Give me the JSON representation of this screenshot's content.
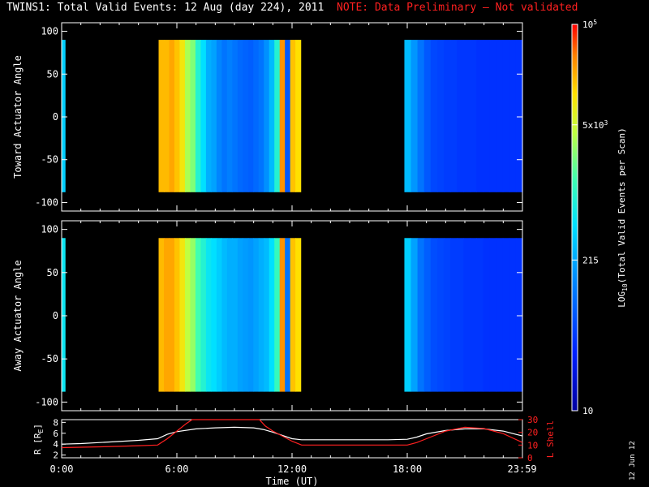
{
  "header": {
    "title": "TWINS1: Total Valid Events: 12 Aug (day 224), 2011",
    "note": "NOTE: Data Preliminary — Not validated"
  },
  "stamp": "12 Jun 12",
  "colors": {
    "background": "#000000",
    "axes": "#ffffff",
    "note": "#ff2020",
    "lshell": "#ff2020",
    "radius": "#ffffff"
  },
  "chart_data": [
    {
      "type": "heatmap",
      "name": "toward",
      "ylabel": "Toward Actuator Angle",
      "ylim": [
        -110,
        110
      ],
      "yticks": [
        100,
        50,
        0,
        -50,
        -100
      ],
      "xlim": [
        0,
        24
      ],
      "angle_range": [
        -88,
        90
      ],
      "segments": [
        {
          "start": 0.0,
          "end": 0.2,
          "level": 0.45
        },
        {
          "start": 5.05,
          "end": 12.45,
          "profile": [
            0.86,
            0.86,
            0.88,
            0.85,
            0.8,
            0.7,
            0.66,
            0.55,
            0.48,
            0.4,
            0.38,
            0.33,
            0.3,
            0.32,
            0.3,
            0.28,
            0.27,
            0.26,
            0.28,
            0.3,
            0.35,
            0.42,
            0.55,
            0.9,
            0.25,
            0.85,
            0.82
          ]
        },
        {
          "start": 17.85,
          "end": 24.0,
          "profile": [
            0.42,
            0.36,
            0.3,
            0.25,
            0.22,
            0.21,
            0.2,
            0.2,
            0.19,
            0.19,
            0.19,
            0.18,
            0.18,
            0.18,
            0.18,
            0.18,
            0.18,
            0.18
          ]
        }
      ]
    },
    {
      "type": "heatmap",
      "name": "away",
      "ylabel": "Away Actuator Angle",
      "ylim": [
        -110,
        110
      ],
      "yticks": [
        100,
        50,
        0,
        -50,
        -100
      ],
      "xlim": [
        0,
        24
      ],
      "angle_range": [
        -88,
        90
      ],
      "segments": [
        {
          "start": 0.0,
          "end": 0.2,
          "level": 0.5
        },
        {
          "start": 5.05,
          "end": 12.45,
          "profile": [
            0.86,
            0.88,
            0.88,
            0.85,
            0.8,
            0.72,
            0.68,
            0.6,
            0.55,
            0.5,
            0.48,
            0.45,
            0.42,
            0.4,
            0.4,
            0.38,
            0.37,
            0.36,
            0.38,
            0.4,
            0.42,
            0.48,
            0.58,
            0.9,
            0.3,
            0.85,
            0.82
          ]
        },
        {
          "start": 17.85,
          "end": 24.0,
          "profile": [
            0.45,
            0.38,
            0.3,
            0.26,
            0.23,
            0.22,
            0.21,
            0.2,
            0.2,
            0.19,
            0.19,
            0.19,
            0.18,
            0.18,
            0.18,
            0.18,
            0.18,
            0.18
          ]
        }
      ]
    },
    {
      "type": "line",
      "name": "orbit",
      "xlabel": "Time (UT)",
      "xticks": [
        {
          "value": 0,
          "label": "0:00"
        },
        {
          "value": 6,
          "label": "6:00"
        },
        {
          "value": 12,
          "label": "12:00"
        },
        {
          "value": 18,
          "label": "18:00"
        },
        {
          "value": 23.983,
          "label": "23:59"
        }
      ],
      "xlim": [
        0,
        24
      ],
      "left_axis": {
        "label": "R [R",
        "label_sub": "E",
        "label_end": "]",
        "ylim": [
          1.5,
          8.5
        ],
        "ticks": [
          2,
          4,
          6,
          8
        ]
      },
      "right_axis": {
        "label": "L Shell",
        "ylim": [
          0,
          30
        ],
        "ticks": [
          0,
          10,
          20,
          30
        ]
      },
      "series": [
        {
          "axis": "left",
          "x": [
            0,
            1,
            2,
            3,
            4,
            5,
            5.5,
            6,
            7,
            8,
            9,
            10,
            10.5,
            11,
            11.5,
            12,
            12.5,
            13,
            14,
            15,
            16,
            17,
            18,
            18.5,
            19,
            20,
            21,
            22,
            23,
            24
          ],
          "y": [
            4.0,
            4.1,
            4.3,
            4.5,
            4.7,
            5.0,
            5.8,
            6.3,
            6.8,
            7.0,
            7.1,
            7.0,
            6.7,
            6.2,
            5.6,
            5.0,
            4.8,
            4.8,
            4.8,
            4.8,
            4.8,
            4.8,
            4.9,
            5.3,
            5.9,
            6.5,
            6.8,
            6.8,
            6.4,
            5.5
          ]
        },
        {
          "axis": "right",
          "x": [
            0,
            1,
            2,
            3,
            4,
            5,
            5.5,
            6,
            6.5,
            6.8,
            10.3,
            10.6,
            11,
            11.5,
            12,
            12.5,
            13,
            14,
            15,
            16,
            17,
            18,
            18.5,
            19,
            20,
            21,
            22,
            23,
            24
          ],
          "y": [
            8,
            8.3,
            8.6,
            9.0,
            9.5,
            10,
            15,
            21,
            27,
            30,
            30,
            25,
            21,
            17,
            13,
            10,
            10,
            10,
            10,
            10,
            10,
            10,
            12,
            15,
            21,
            24,
            23,
            19,
            12
          ]
        }
      ]
    },
    {
      "type": "heatmap",
      "name": "colorbar",
      "ylabel_pre": "LOG",
      "ylabel_sub": "10",
      "ylabel_post": "(Total Valid Events per Scan)",
      "ticks": [
        {
          "level": 1.0,
          "label": "10",
          "sup": "5"
        },
        {
          "level": 0.74,
          "label": "5x10",
          "sup": "3"
        },
        {
          "level": 0.39,
          "label": "215",
          "sup": ""
        },
        {
          "level": 0.0,
          "label": "10",
          "sup": ""
        }
      ]
    }
  ]
}
